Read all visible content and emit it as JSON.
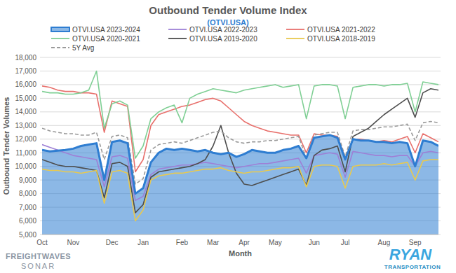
{
  "chart_data": {
    "type": "line",
    "title": "Outbound Tender Volume Index",
    "subtitle": "(OTVI.USA)",
    "x_label": "Month",
    "y_label": "Outbound Tender Volumes",
    "annotations": [
      "FREIGHTWAVES",
      "SONAR",
      "RYAN",
      "TRANSPORTATION"
    ],
    "grid": true,
    "legend": "top",
    "categories": [
      "Oct",
      null,
      null,
      null,
      "Nov",
      null,
      null,
      null,
      null,
      "Dec",
      null,
      null,
      null,
      "Jan",
      null,
      null,
      null,
      null,
      "Feb",
      null,
      null,
      null,
      "Mar",
      null,
      null,
      null,
      "Apr",
      null,
      null,
      null,
      "May",
      null,
      null,
      null,
      null,
      "Jun",
      null,
      null,
      null,
      "Jul",
      null,
      null,
      null,
      null,
      "Aug",
      null,
      null,
      null,
      "Sep",
      null,
      null,
      null
    ],
    "ylim": [
      5000,
      18000
    ],
    "yticks": [
      {
        "value": 5000,
        "label": "5,000"
      },
      {
        "value": 6000,
        "label": "6,000"
      },
      {
        "value": 7000,
        "label": "7,000"
      },
      {
        "value": 8000,
        "label": "8,000"
      },
      {
        "value": 9000,
        "label": "9,000"
      },
      {
        "value": 10000,
        "label": "10,000"
      },
      {
        "value": 11000,
        "label": "11,000"
      },
      {
        "value": 12000,
        "label": "12,000"
      },
      {
        "value": 13000,
        "label": "13,000"
      },
      {
        "value": 14000,
        "label": "14,000"
      },
      {
        "value": 15000,
        "label": "15,000"
      },
      {
        "value": 16000,
        "label": "16,000"
      },
      {
        "value": 17000,
        "label": "17,000"
      },
      {
        "value": 18000,
        "label": "18,000"
      }
    ],
    "series": [
      {
        "name": "OTVI.USA 2023-2024",
        "type": "area",
        "color": "#2e7dd1",
        "values": [
          11200,
          11100,
          11150,
          11200,
          11300,
          11500,
          11600,
          11700,
          9000,
          11800,
          11900,
          11700,
          8000,
          8400,
          10300,
          11000,
          11300,
          11200,
          11300,
          11200,
          11100,
          11200,
          11000,
          10900,
          11000,
          10700,
          10900,
          11200,
          11100,
          11000,
          11000,
          11200,
          11300,
          11500,
          10600,
          12100,
          12200,
          12300,
          12100,
          10500,
          12000,
          11900,
          11900,
          11800,
          11800,
          11700,
          11800,
          11700,
          10000,
          11900,
          11800,
          11500
        ]
      },
      {
        "name": "OTVI.USA 2022-2023",
        "type": "line",
        "color": "#9e80d6",
        "values": [
          11600,
          11400,
          11200,
          11000,
          10800,
          10700,
          10600,
          10500,
          8500,
          10700,
          10800,
          10600,
          7500,
          7800,
          9400,
          9800,
          9900,
          10000,
          10100,
          10100,
          10200,
          10300,
          10200,
          10100,
          10000,
          9900,
          10000,
          10100,
          10200,
          10200,
          10300,
          10400,
          10500,
          10600,
          9500,
          10800,
          10900,
          11000,
          10900,
          9200,
          11100,
          11000,
          10900,
          10800,
          10800,
          10700,
          10800,
          10800,
          10000,
          11000,
          11100,
          11000
        ]
      },
      {
        "name": "OTVI.USA 2021-2022",
        "type": "line",
        "color": "#e8706c",
        "values": [
          15900,
          15800,
          15600,
          15500,
          15500,
          15400,
          15400,
          15300,
          12500,
          14800,
          14600,
          14400,
          9600,
          10500,
          13000,
          13800,
          14000,
          14200,
          14400,
          14500,
          14700,
          14900,
          15000,
          14800,
          14300,
          13800,
          13300,
          13000,
          12800,
          12600,
          12500,
          12400,
          12300,
          12300,
          11000,
          12400,
          12300,
          12300,
          12200,
          10600,
          12000,
          12000,
          11900,
          11800,
          11900,
          11800,
          12000,
          12200,
          11000,
          12400,
          12100,
          11800
        ]
      },
      {
        "name": "OTVI.USA 2020-2021",
        "type": "line",
        "color": "#7fcf94",
        "values": [
          15500,
          15400,
          15400,
          15300,
          15300,
          15400,
          15600,
          17000,
          12800,
          14600,
          14800,
          14500,
          10600,
          11500,
          13500,
          14000,
          14300,
          14500,
          13200,
          15000,
          15300,
          15500,
          15700,
          15600,
          15500,
          15400,
          15600,
          15700,
          15800,
          15900,
          16000,
          15800,
          15900,
          16000,
          13500,
          15900,
          16000,
          16000,
          15900,
          13500,
          15800,
          15900,
          16000,
          16000,
          15900,
          16000,
          16000,
          16100,
          14000,
          16200,
          16100,
          16000
        ]
      },
      {
        "name": "OTVI.USA 2019-2020",
        "type": "line",
        "color": "#4d4d4d",
        "values": [
          10500,
          10300,
          10100,
          10000,
          10000,
          9900,
          9800,
          9700,
          7700,
          10200,
          10300,
          10000,
          6600,
          7200,
          9200,
          9600,
          9700,
          9800,
          9900,
          10000,
          10200,
          10500,
          11500,
          13000,
          11000,
          9500,
          8700,
          8600,
          8800,
          9000,
          9200,
          9400,
          9600,
          9800,
          8600,
          10800,
          11200,
          11300,
          11500,
          9600,
          12200,
          12500,
          12800,
          13300,
          13800,
          14200,
          14600,
          15000,
          13600,
          15400,
          15700,
          15600
        ]
      },
      {
        "name": "OTVI.USA 2018-2019",
        "type": "line",
        "color": "#e8c94f",
        "values": [
          9800,
          9700,
          9700,
          9600,
          9600,
          9500,
          9600,
          9700,
          7300,
          9600,
          9700,
          9500,
          6000,
          6800,
          9000,
          9300,
          9400,
          9500,
          9500,
          9600,
          9700,
          9800,
          9800,
          9900,
          9700,
          9600,
          9500,
          9600,
          9600,
          9700,
          9800,
          9900,
          9900,
          10000,
          8500,
          10000,
          10100,
          10100,
          10000,
          8400,
          10000,
          10100,
          10100,
          10100,
          10200,
          10100,
          10200,
          10300,
          9000,
          10400,
          10500,
          10500
        ]
      },
      {
        "name": "5Y Avg",
        "type": "line",
        "color": "#9a9a9a",
        "line_style": "dashed",
        "values": [
          12800,
          12600,
          12500,
          12400,
          12400,
          12300,
          12300,
          12500,
          10500,
          12200,
          12300,
          12100,
          8700,
          9100,
          11200,
          11600,
          11700,
          11800,
          11700,
          11900,
          12100,
          12300,
          12500,
          12600,
          12100,
          11800,
          11700,
          11800,
          11800,
          11900,
          11900,
          12000,
          12100,
          12200,
          10600,
          12300,
          12400,
          12500,
          12500,
          10700,
          12600,
          12700,
          12700,
          12800,
          12900,
          12900,
          13000,
          13100,
          11900,
          13200,
          13300,
          13200
        ]
      }
    ]
  }
}
